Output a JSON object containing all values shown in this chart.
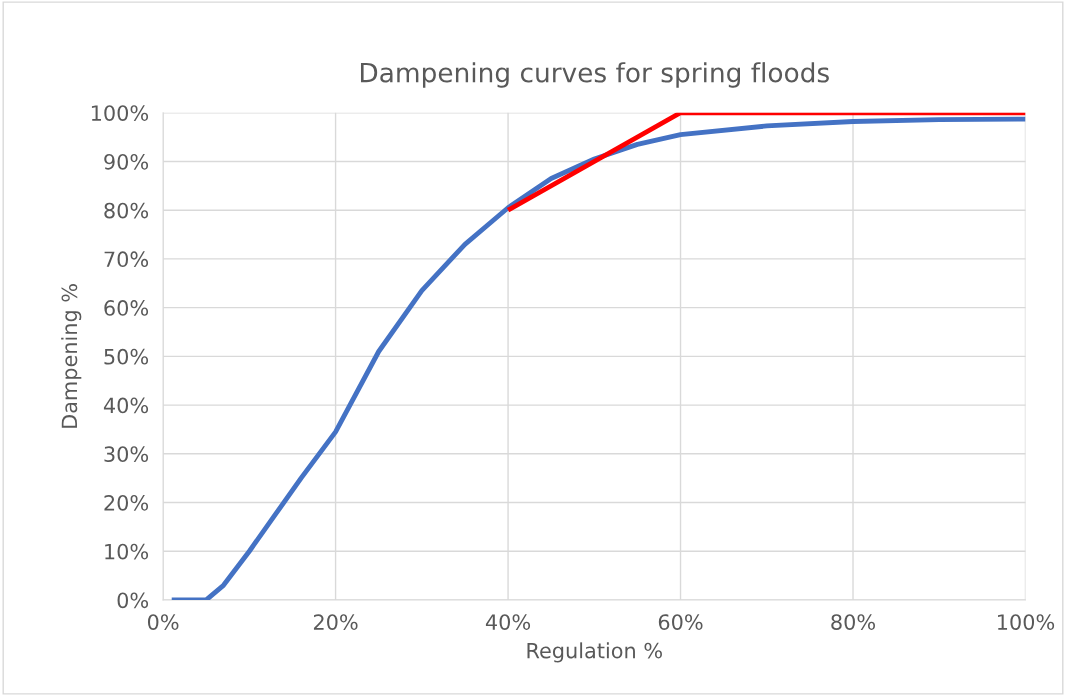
{
  "chart_data": {
    "type": "line",
    "title": "Dampening curves for spring floods",
    "xlabel": "Regulation %",
    "ylabel": "Dampening %",
    "series": [
      {
        "color": "#4472c4",
        "x": [
          1,
          5,
          7,
          10,
          13,
          16,
          20,
          25,
          30,
          35,
          40,
          45,
          50,
          55,
          60,
          70,
          80,
          90,
          100
        ],
        "values": [
          0,
          0,
          3,
          10,
          17.5,
          25,
          34.5,
          51,
          63.5,
          73,
          80.5,
          86.5,
          90.5,
          93.5,
          95.5,
          97.3,
          98.2,
          98.6,
          98.7
        ]
      },
      {
        "color": "#ff0000",
        "x": [
          40,
          60,
          100
        ],
        "values": [
          80,
          100,
          100
        ]
      }
    ],
    "xlim": [
      0,
      100
    ],
    "ylim": [
      0,
      100
    ],
    "xticks": [
      {
        "value": 0,
        "label": "0%"
      },
      {
        "value": 20,
        "label": "20%"
      },
      {
        "value": 40,
        "label": "40%"
      },
      {
        "value": 60,
        "label": "60%"
      },
      {
        "value": 80,
        "label": "80%"
      },
      {
        "value": 100,
        "label": "100%"
      }
    ],
    "yticks": [
      {
        "value": 0,
        "label": "0%"
      },
      {
        "value": 10,
        "label": "10%"
      },
      {
        "value": 20,
        "label": "20%"
      },
      {
        "value": 30,
        "label": "30%"
      },
      {
        "value": 40,
        "label": "40%"
      },
      {
        "value": 50,
        "label": "50%"
      },
      {
        "value": 60,
        "label": "60%"
      },
      {
        "value": 70,
        "label": "70%"
      },
      {
        "value": 80,
        "label": "80%"
      },
      {
        "value": 90,
        "label": "90%"
      },
      {
        "value": 100,
        "label": "100%"
      }
    ],
    "grid": true
  }
}
